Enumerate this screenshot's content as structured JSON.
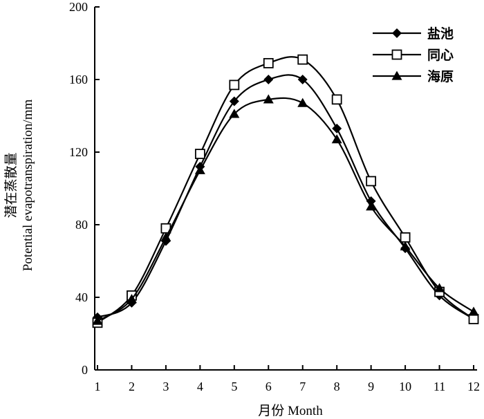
{
  "chart_data": {
    "type": "line",
    "x": [
      1,
      2,
      3,
      4,
      5,
      6,
      7,
      8,
      9,
      10,
      11,
      12
    ],
    "x_tick_labels": [
      "1",
      "2",
      "3",
      "4",
      "5",
      "6",
      "7",
      "8",
      "9",
      "10",
      "11",
      "12"
    ],
    "y_tick_labels": [
      "0",
      "40",
      "80",
      "120",
      "160",
      "200"
    ],
    "ylim": [
      0,
      200
    ],
    "xlabel": "月份 Month",
    "ylabel_zh": "潜在蒸散量",
    "ylabel_en": "Potential evapotranspiration/mm",
    "grid": false,
    "legend_position": "top-right",
    "series": [
      {
        "name": "盐池",
        "marker": "diamond-filled",
        "values": [
          29,
          37,
          71,
          112,
          148,
          160,
          160,
          133,
          93,
          67,
          41,
          28
        ]
      },
      {
        "name": "同心",
        "marker": "square-open",
        "values": [
          26,
          41,
          78,
          119,
          157,
          169,
          171,
          149,
          104,
          73,
          43,
          28
        ]
      },
      {
        "name": "海原",
        "marker": "triangle-filled",
        "values": [
          27,
          39,
          73,
          110,
          141,
          149,
          147,
          127,
          90,
          68,
          45,
          32
        ]
      }
    ]
  }
}
